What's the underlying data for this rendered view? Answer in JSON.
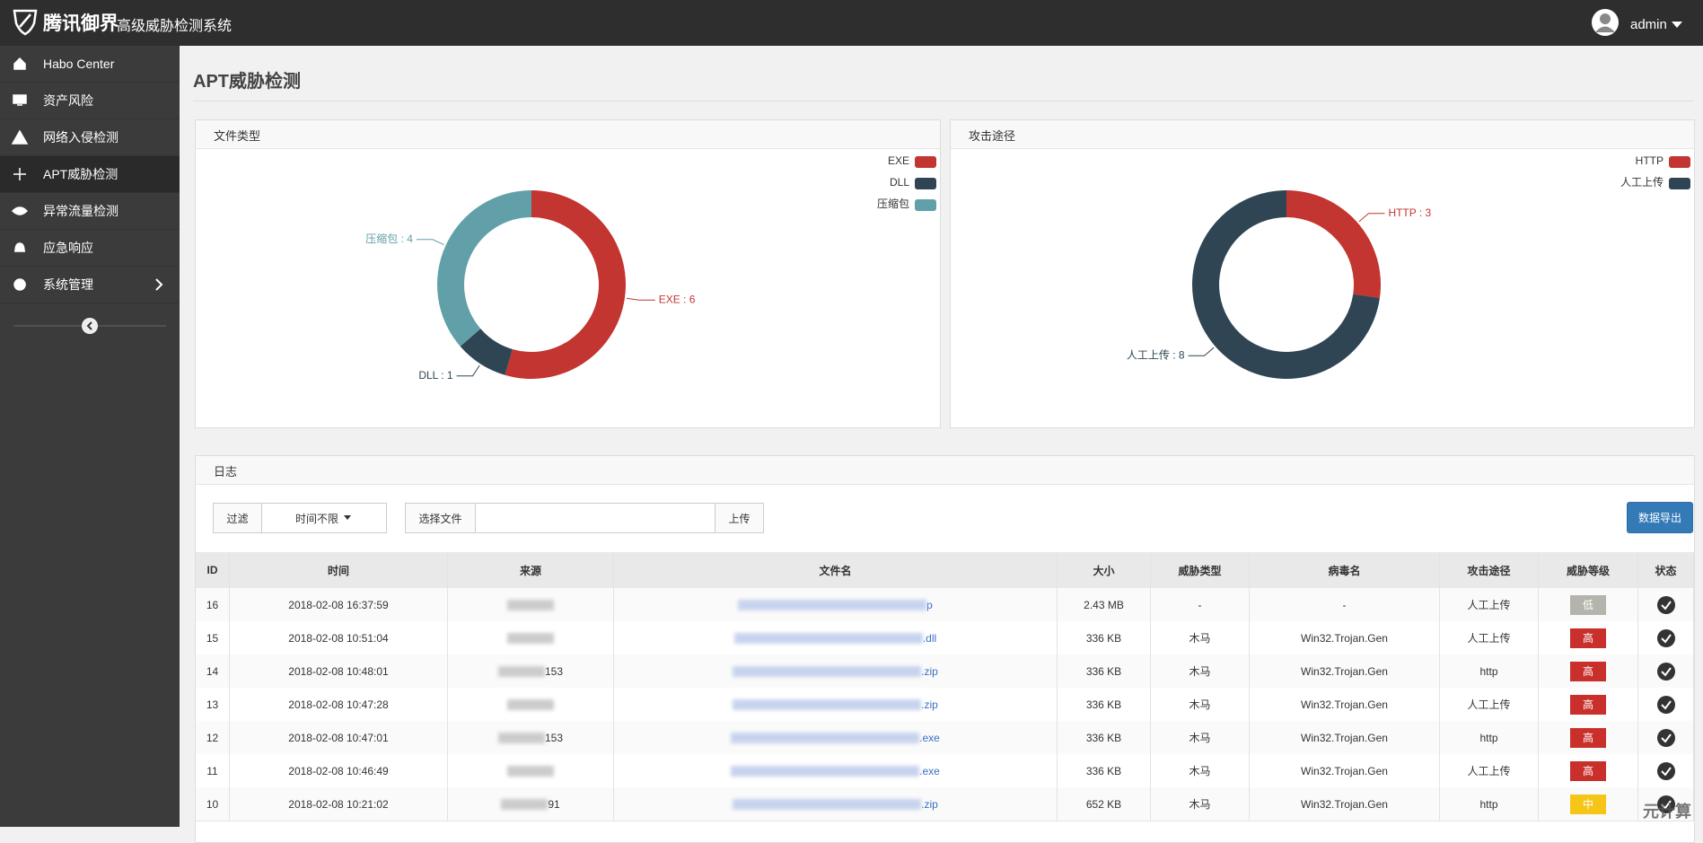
{
  "header": {
    "brand": "腾讯御界",
    "system": "高级威胁检测系统",
    "user": "admin"
  },
  "sidebar": {
    "items": [
      "Habo Center",
      "资产风险",
      "网络入侵检测",
      "APT威胁检测",
      "异常流量检测",
      "应急响应",
      "系统管理"
    ],
    "active": 3
  },
  "page": {
    "title": "APT威胁检测"
  },
  "chart_data": [
    {
      "type": "pie",
      "title": "文件类型",
      "categories": [
        "EXE",
        "DLL",
        "压缩包"
      ],
      "values": [
        6,
        1,
        4
      ],
      "value_labels": [
        "EXE : 6",
        "DLL : 1",
        "压缩包 : 4"
      ],
      "colors": [
        "#c23531",
        "#2f4554",
        "#61a0a8"
      ],
      "legend": "top-right"
    },
    {
      "type": "pie",
      "title": "攻击途径",
      "categories": [
        "HTTP",
        "人工上传"
      ],
      "values": [
        3,
        8
      ],
      "value_labels": [
        "HTTP : 3",
        "人工上传 : 8"
      ],
      "colors": [
        "#c23531",
        "#2f4554"
      ],
      "legend": "top-right"
    }
  ],
  "log": {
    "title": "日志",
    "filter": "过滤",
    "time_filter": "时间不限",
    "file_button": "选择文件",
    "upload": "上传",
    "export": "数据导出",
    "columns": [
      "ID",
      "时间",
      "来源",
      "文件名",
      "大小",
      "威胁类型",
      "病毒名",
      "攻击途径",
      "威胁等级",
      "状态"
    ],
    "rows": [
      [
        "16",
        "2018-02-08 16:37:59",
        null,
        "p",
        "2.43 MB",
        "-",
        "-",
        "人工上传",
        "低"
      ],
      [
        "15",
        "2018-02-08 10:51:04",
        null,
        ".dll",
        "336 KB",
        "木马",
        "Win32.Trojan.Gen",
        "人工上传",
        "高"
      ],
      [
        "14",
        "2018-02-08 10:48:01",
        "153",
        ".zip",
        "336 KB",
        "木马",
        "Win32.Trojan.Gen",
        "http",
        "高"
      ],
      [
        "13",
        "2018-02-08 10:47:28",
        null,
        ".zip",
        "336 KB",
        "木马",
        "Win32.Trojan.Gen",
        "人工上传",
        "高"
      ],
      [
        "12",
        "2018-02-08 10:47:01",
        "153",
        ".exe",
        "336 KB",
        "木马",
        "Win32.Trojan.Gen",
        "http",
        "高"
      ],
      [
        "11",
        "2018-02-08 10:46:49",
        null,
        ".exe",
        "336 KB",
        "木马",
        "Win32.Trojan.Gen",
        "人工上传",
        "高"
      ],
      [
        "10",
        "2018-02-08 10:21:02",
        "91",
        ".zip",
        "652 KB",
        "木马",
        "Win32.Trojan.Gen",
        "http",
        "中"
      ]
    ],
    "level_colors": {
      "低": "#b4b4ac",
      "高": "#c9302c",
      "中": "#f5c518"
    }
  },
  "watermark": "元计算"
}
